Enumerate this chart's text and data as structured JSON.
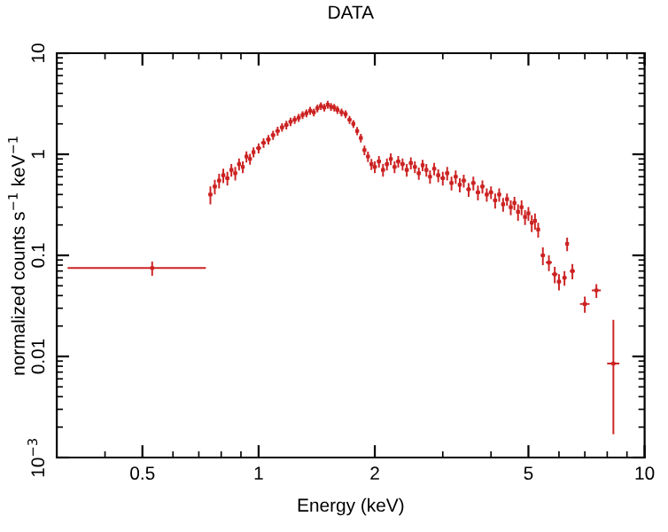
{
  "chart_data": {
    "type": "scatter",
    "title": "DATA",
    "xlabel": "Energy (keV)",
    "ylabel": "normalized counts s$^{−1}$ keV$^{−1}$",
    "log": "xy",
    "marker": "square",
    "grid": false,
    "legend": false,
    "xlim": [
      0.3,
      10
    ],
    "xticks": [
      0.5,
      1,
      2,
      5,
      10
    ],
    "ylim": [
      0.001,
      10
    ],
    "yticks": [
      {
        "value": 0.001,
        "label": "10$^{−3}$"
      },
      0.01,
      0.1,
      1,
      10
    ],
    "series": [
      {
        "color": "#cc2222",
        "x": [
          0.53,
          0.75,
          0.77,
          0.79,
          0.81,
          0.83,
          0.85,
          0.87,
          0.89,
          0.91,
          0.93,
          0.95,
          0.97,
          1.0,
          1.03,
          1.06,
          1.09,
          1.12,
          1.15,
          1.18,
          1.21,
          1.24,
          1.27,
          1.3,
          1.33,
          1.36,
          1.39,
          1.42,
          1.45,
          1.48,
          1.51,
          1.54,
          1.57,
          1.6,
          1.64,
          1.68,
          1.72,
          1.76,
          1.8,
          1.84,
          1.88,
          1.92,
          1.96,
          2.0,
          2.05,
          2.1,
          2.15,
          2.2,
          2.25,
          2.3,
          2.36,
          2.42,
          2.48,
          2.54,
          2.6,
          2.66,
          2.72,
          2.78,
          2.85,
          2.92,
          3.0,
          3.08,
          3.16,
          3.24,
          3.32,
          3.4,
          3.5,
          3.6,
          3.7,
          3.8,
          3.9,
          4.0,
          4.1,
          4.2,
          4.3,
          4.4,
          4.5,
          4.6,
          4.7,
          4.8,
          4.9,
          5.0,
          5.1,
          5.2,
          5.3,
          5.45,
          5.65,
          5.85,
          6.0,
          6.2,
          6.3,
          6.5,
          7.0,
          7.5,
          8.3
        ],
        "values": [
          0.075,
          0.4,
          0.48,
          0.55,
          0.62,
          0.58,
          0.7,
          0.65,
          0.8,
          0.75,
          0.95,
          0.9,
          1.05,
          1.15,
          1.3,
          1.4,
          1.55,
          1.7,
          1.85,
          1.95,
          2.1,
          2.2,
          2.3,
          2.45,
          2.55,
          2.7,
          2.6,
          2.85,
          3.0,
          2.9,
          3.1,
          2.95,
          2.9,
          2.75,
          2.6,
          2.5,
          2.2,
          2.0,
          1.7,
          1.45,
          1.1,
          0.95,
          0.8,
          0.75,
          0.85,
          0.7,
          0.8,
          0.9,
          0.75,
          0.85,
          0.8,
          0.7,
          0.82,
          0.75,
          0.65,
          0.78,
          0.7,
          0.6,
          0.72,
          0.62,
          0.58,
          0.65,
          0.52,
          0.6,
          0.5,
          0.55,
          0.45,
          0.52,
          0.42,
          0.48,
          0.4,
          0.42,
          0.35,
          0.4,
          0.32,
          0.36,
          0.3,
          0.33,
          0.27,
          0.3,
          0.24,
          0.26,
          0.21,
          0.22,
          0.18,
          0.1,
          0.085,
          0.065,
          0.055,
          0.06,
          0.13,
          0.07,
          0.033,
          0.045,
          0.0085
        ],
        "errors": [
          0.012,
          0.08,
          0.08,
          0.09,
          0.1,
          0.09,
          0.1,
          0.1,
          0.11,
          0.1,
          0.12,
          0.11,
          0.12,
          0.13,
          0.14,
          0.15,
          0.16,
          0.17,
          0.18,
          0.19,
          0.2,
          0.2,
          0.21,
          0.22,
          0.23,
          0.24,
          0.23,
          0.25,
          0.26,
          0.25,
          0.27,
          0.26,
          0.25,
          0.24,
          0.23,
          0.22,
          0.2,
          0.18,
          0.16,
          0.14,
          0.12,
          0.11,
          0.1,
          0.1,
          0.11,
          0.1,
          0.11,
          0.12,
          0.1,
          0.11,
          0.11,
          0.1,
          0.11,
          0.1,
          0.09,
          0.1,
          0.1,
          0.09,
          0.1,
          0.09,
          0.09,
          0.1,
          0.08,
          0.09,
          0.08,
          0.08,
          0.07,
          0.08,
          0.07,
          0.07,
          0.06,
          0.06,
          0.06,
          0.06,
          0.05,
          0.05,
          0.05,
          0.05,
          0.05,
          0.05,
          0.04,
          0.04,
          0.04,
          0.04,
          0.03,
          0.02,
          0.015,
          0.012,
          0.01,
          0.01,
          0.02,
          0.012,
          0.006,
          0.007,
          [
            0.0017,
            0.023
          ]
        ],
        "xerrors": [
          [
            0.32,
            0.73
          ],
          0.01,
          0.01,
          0.01,
          0.01,
          0.01,
          0.01,
          0.01,
          0.01,
          0.01,
          0.01,
          0.01,
          0.01,
          0.015,
          0.015,
          0.015,
          0.015,
          0.015,
          0.015,
          0.015,
          0.015,
          0.015,
          0.015,
          0.015,
          0.015,
          0.015,
          0.015,
          0.015,
          0.015,
          0.015,
          0.015,
          0.015,
          0.015,
          0.02,
          0.02,
          0.02,
          0.02,
          0.02,
          0.02,
          0.02,
          0.02,
          0.02,
          0.02,
          0.025,
          0.025,
          0.025,
          0.025,
          0.025,
          0.025,
          0.03,
          0.03,
          0.03,
          0.03,
          0.03,
          0.03,
          0.03,
          0.03,
          0.03,
          0.035,
          0.035,
          0.04,
          0.04,
          0.04,
          0.04,
          0.04,
          0.05,
          0.05,
          0.05,
          0.05,
          0.05,
          0.05,
          0.05,
          0.05,
          0.05,
          0.05,
          0.05,
          0.05,
          0.05,
          0.05,
          0.05,
          0.05,
          0.05,
          0.05,
          0.05,
          0.05,
          0.07,
          0.1,
          0.1,
          0.08,
          0.08,
          0.06,
          0.1,
          0.2,
          0.2,
          0.3
        ]
      }
    ]
  }
}
